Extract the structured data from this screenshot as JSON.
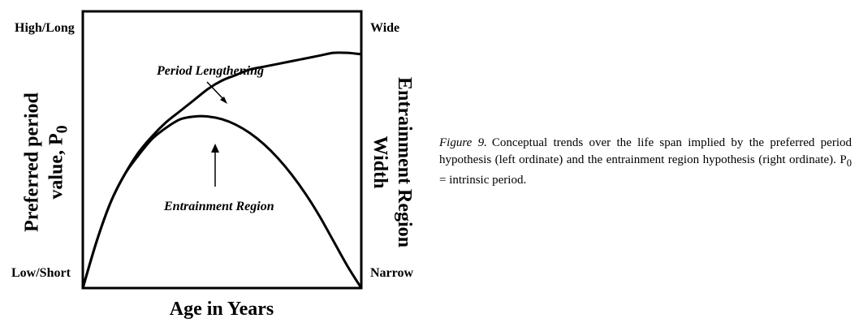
{
  "chart_data": {
    "type": "line",
    "title": "",
    "xlabel": "Age in Years",
    "ylabel_left": {
      "main": "Preferred period",
      "sub_prefix": "value, P",
      "sub_subscript": "0"
    },
    "ylabel_right": {
      "line1": "Entrainment Region",
      "line2": "Width"
    },
    "left_axis_ticks": {
      "top": "High/Long",
      "bottom": "Low/Short"
    },
    "right_axis_ticks": {
      "top": "Wide",
      "bottom": "Narrow"
    },
    "xlim": [
      0,
      1
    ],
    "ylim": [
      0,
      1
    ],
    "grid": false,
    "series": [
      {
        "name": "Period Lengthening",
        "x": [
          0.0,
          0.05,
          0.1,
          0.15,
          0.2,
          0.25,
          0.3,
          0.35,
          0.4,
          0.45,
          0.5,
          0.55,
          0.6,
          0.65,
          0.7,
          0.75,
          0.8,
          0.85,
          0.9,
          0.95,
          1.0
        ],
        "y": [
          0.0,
          0.17,
          0.31,
          0.41,
          0.49,
          0.55,
          0.6,
          0.64,
          0.68,
          0.72,
          0.75,
          0.77,
          0.79,
          0.8,
          0.81,
          0.82,
          0.83,
          0.84,
          0.85,
          0.85,
          0.845
        ]
      },
      {
        "name": "Entrainment Region",
        "x": [
          0.0,
          0.05,
          0.1,
          0.15,
          0.2,
          0.25,
          0.3,
          0.35,
          0.4,
          0.45,
          0.5,
          0.55,
          0.6,
          0.65,
          0.7,
          0.75,
          0.8,
          0.85,
          0.9,
          0.95,
          1.0
        ],
        "y": [
          0.0,
          0.17,
          0.31,
          0.41,
          0.48,
          0.54,
          0.58,
          0.61,
          0.62,
          0.62,
          0.61,
          0.59,
          0.56,
          0.52,
          0.47,
          0.41,
          0.34,
          0.26,
          0.17,
          0.08,
          0.0
        ]
      }
    ],
    "annotations": [
      {
        "text": "Period Lengthening",
        "target_series": "Period Lengthening",
        "x": 0.52,
        "y": 0.76
      },
      {
        "text": "Entrainment Region",
        "target_series": "Entrainment Region",
        "x": 0.47,
        "y": 0.62
      }
    ]
  },
  "caption": {
    "figure_label": "Figure 9.",
    "text_before": "Conceptual trends over the life span implied by the preferred period hypothesis (left ordinate) and the entrainment region hypothesis (right ordinate). P",
    "subscript": "0",
    "text_after": " = intrinsic period."
  }
}
